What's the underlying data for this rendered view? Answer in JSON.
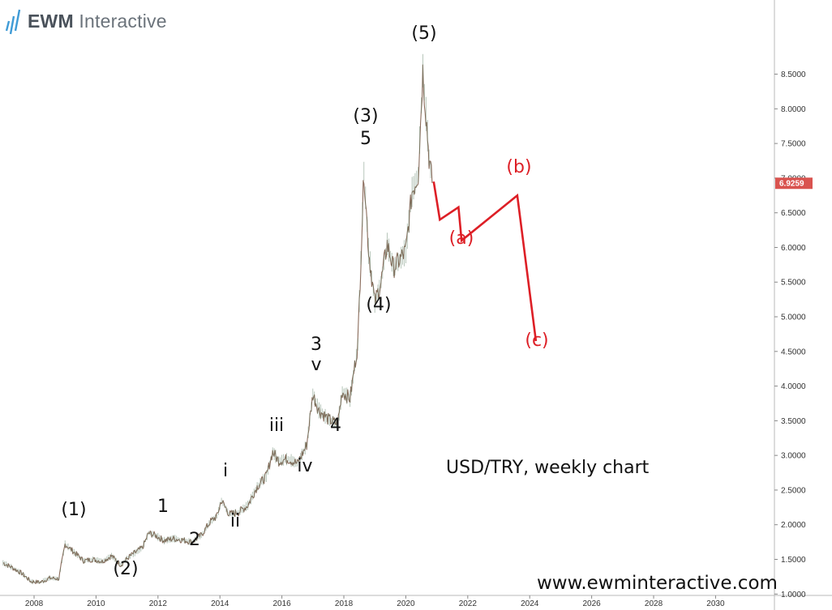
{
  "logo": {
    "brand_bold": "EWM",
    "brand_light": "Interactive"
  },
  "chart_data": {
    "type": "line",
    "title": "USD/TRY, weekly chart",
    "xlabel": "",
    "ylabel": "",
    "x_ticks": [
      "2008",
      "2010",
      "2012",
      "2014",
      "2016",
      "2018",
      "2020",
      "2022",
      "2024",
      "2026",
      "2028",
      "2030"
    ],
    "y_ticks": [
      "1.0000",
      "1.5000",
      "2.0000",
      "2.5000",
      "3.0000",
      "3.5000",
      "4.0000",
      "4.5000",
      "5.0000",
      "5.5000",
      "6.0000",
      "6.5000",
      "7.0000",
      "7.5000",
      "8.0000",
      "8.5000"
    ],
    "xlim": [
      2006.9,
      2031.9
    ],
    "ylim": [
      0.98,
      9.57
    ],
    "last_price": "6.9259",
    "series": [
      {
        "values": [
          [
            2007.0,
            1.45
          ],
          [
            2007.3,
            1.38
          ],
          [
            2007.6,
            1.3
          ],
          [
            2007.9,
            1.18
          ],
          [
            2008.2,
            1.17
          ],
          [
            2008.5,
            1.23
          ],
          [
            2008.8,
            1.22
          ],
          [
            2009.0,
            1.72
          ],
          [
            2009.3,
            1.6
          ],
          [
            2009.6,
            1.48
          ],
          [
            2009.9,
            1.5
          ],
          [
            2010.2,
            1.47
          ],
          [
            2010.5,
            1.55
          ],
          [
            2010.8,
            1.42
          ],
          [
            2011.1,
            1.55
          ],
          [
            2011.5,
            1.67
          ],
          [
            2011.7,
            1.88
          ],
          [
            2011.9,
            1.85
          ],
          [
            2012.2,
            1.77
          ],
          [
            2012.5,
            1.8
          ],
          [
            2012.8,
            1.78
          ],
          [
            2013.1,
            1.75
          ],
          [
            2013.4,
            1.85
          ],
          [
            2013.7,
            2.05
          ],
          [
            2013.9,
            2.12
          ],
          [
            2014.05,
            2.35
          ],
          [
            2014.3,
            2.15
          ],
          [
            2014.6,
            2.18
          ],
          [
            2014.9,
            2.28
          ],
          [
            2015.2,
            2.55
          ],
          [
            2015.5,
            2.7
          ],
          [
            2015.7,
            3.05
          ],
          [
            2015.9,
            2.92
          ],
          [
            2016.2,
            2.95
          ],
          [
            2016.5,
            2.88
          ],
          [
            2016.8,
            3.15
          ],
          [
            2017.0,
            3.88
          ],
          [
            2017.2,
            3.65
          ],
          [
            2017.5,
            3.52
          ],
          [
            2017.8,
            3.45
          ],
          [
            2017.95,
            3.92
          ],
          [
            2018.2,
            3.82
          ],
          [
            2018.45,
            4.6
          ],
          [
            2018.65,
            7.1
          ],
          [
            2018.8,
            5.95
          ],
          [
            2019.0,
            5.2
          ],
          [
            2019.2,
            5.5
          ],
          [
            2019.4,
            6.05
          ],
          [
            2019.6,
            5.7
          ],
          [
            2019.8,
            5.82
          ],
          [
            2020.0,
            5.95
          ],
          [
            2020.2,
            6.8
          ],
          [
            2020.4,
            7.05
          ],
          [
            2020.55,
            8.55
          ],
          [
            2020.75,
            7.3
          ],
          [
            2020.85,
            6.93
          ]
        ]
      },
      {
        "values": [
          [
            2020.9,
            6.95
          ],
          [
            2021.1,
            6.4
          ],
          [
            2021.7,
            6.58
          ],
          [
            2021.8,
            6.1
          ],
          [
            2023.6,
            6.75
          ],
          [
            2024.2,
            4.65
          ]
        ]
      }
    ],
    "annotations": {
      "black": [
        "(1)",
        "(2)",
        "1",
        "2",
        "i",
        "ii",
        "iii",
        "iv",
        "3",
        "v",
        "4",
        "(3)",
        "5",
        "(4)",
        "(5)"
      ],
      "red": [
        "(a)",
        "(b)",
        "(c)"
      ]
    },
    "colors": {
      "price": "#8a6c5c",
      "projection": "#dd1f26",
      "label_red": "#dd1f26",
      "price_tag_bg": "#d9534f"
    }
  },
  "website": "www.ewminteractive.com"
}
